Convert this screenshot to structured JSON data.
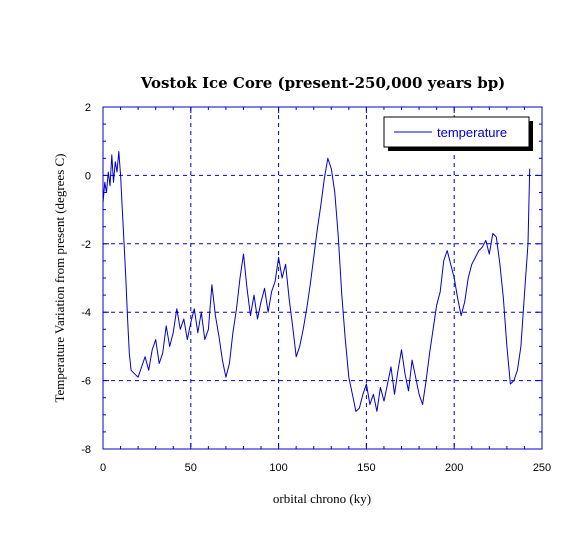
{
  "chart_data": {
    "type": "line",
    "title": "Vostok Ice Core (present-250,000 years bp)",
    "xlabel": "orbital chrono (ky)",
    "ylabel": "Temperature Variation from present (degrees C)",
    "xlim": [
      0,
      250
    ],
    "ylim": [
      -8,
      2
    ],
    "xticks": [
      0,
      50,
      100,
      150,
      200,
      250
    ],
    "yticks": [
      -8,
      -6,
      -4,
      -2,
      0,
      2
    ],
    "grid": true,
    "legend": "top-right",
    "colors": {
      "series": "#0000cc",
      "grid": "#0000cc",
      "axis": "#0000cc"
    },
    "series": [
      {
        "name": "temperature",
        "x": [
          0,
          1,
          2,
          3,
          4,
          5,
          6,
          7,
          8,
          9,
          10,
          11,
          12,
          13,
          14,
          15,
          16,
          18,
          20,
          22,
          24,
          26,
          28,
          30,
          32,
          34,
          36,
          38,
          40,
          42,
          44,
          46,
          48,
          50,
          52,
          54,
          56,
          58,
          60,
          62,
          64,
          66,
          68,
          70,
          72,
          74,
          76,
          78,
          80,
          82,
          84,
          86,
          88,
          90,
          92,
          94,
          96,
          98,
          100,
          102,
          104,
          106,
          108,
          110,
          112,
          114,
          116,
          118,
          120,
          122,
          124,
          126,
          128,
          130,
          132,
          134,
          136,
          138,
          140,
          142,
          144,
          146,
          148,
          150,
          152,
          154,
          156,
          158,
          160,
          162,
          164,
          166,
          168,
          170,
          172,
          174,
          176,
          178,
          180,
          182,
          184,
          186,
          188,
          190,
          192,
          194,
          196,
          198,
          200,
          202,
          204,
          206,
          208,
          210,
          212,
          214,
          216,
          218,
          220,
          222,
          224,
          226,
          228,
          230,
          232,
          234,
          236,
          238,
          240,
          242,
          243
        ],
        "y": [
          -0.8,
          -0.2,
          -0.5,
          0.1,
          -0.3,
          0.6,
          -0.2,
          0.4,
          0.1,
          0.7,
          0.0,
          -1.0,
          -2.0,
          -3.0,
          -4.2,
          -5.2,
          -5.7,
          -5.8,
          -5.9,
          -5.6,
          -5.3,
          -5.7,
          -5.1,
          -4.8,
          -5.5,
          -5.2,
          -4.4,
          -5.0,
          -4.6,
          -3.9,
          -4.5,
          -4.2,
          -4.8,
          -4.3,
          -3.9,
          -4.6,
          -4.0,
          -4.8,
          -4.5,
          -3.2,
          -4.1,
          -4.7,
          -5.4,
          -5.9,
          -5.5,
          -4.6,
          -3.9,
          -3.0,
          -2.3,
          -3.3,
          -4.1,
          -3.5,
          -4.2,
          -3.7,
          -3.3,
          -4.0,
          -3.4,
          -3.1,
          -2.4,
          -3.0,
          -2.6,
          -3.6,
          -4.4,
          -5.3,
          -5.0,
          -4.5,
          -3.9,
          -3.2,
          -2.4,
          -1.6,
          -0.9,
          -0.1,
          0.5,
          0.2,
          -0.5,
          -1.8,
          -3.5,
          -4.8,
          -5.9,
          -6.4,
          -6.9,
          -6.8,
          -6.4,
          -6.1,
          -6.7,
          -6.4,
          -6.9,
          -6.2,
          -6.6,
          -6.1,
          -5.6,
          -6.4,
          -5.7,
          -5.1,
          -5.8,
          -6.3,
          -5.4,
          -5.9,
          -6.4,
          -6.7,
          -6.0,
          -5.2,
          -4.5,
          -3.8,
          -3.4,
          -2.5,
          -2.2,
          -2.6,
          -3.0,
          -3.6,
          -4.1,
          -3.7,
          -3.0,
          -2.6,
          -2.4,
          -2.2,
          -2.1,
          -1.9,
          -2.3,
          -1.7,
          -1.8,
          -2.6,
          -3.6,
          -5.0,
          -6.1,
          -6.0,
          -5.7,
          -5.0,
          -3.5,
          -2.0,
          0.2
        ]
      }
    ]
  }
}
